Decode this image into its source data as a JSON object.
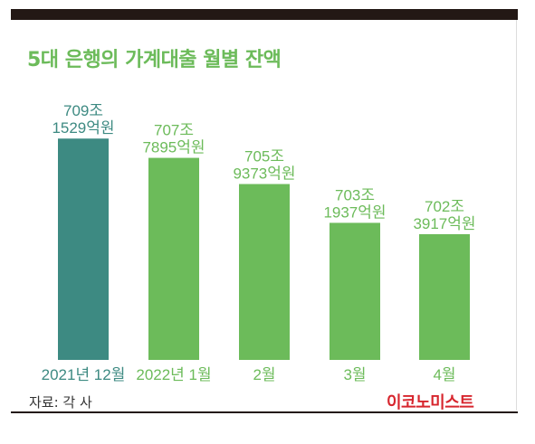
{
  "title": "5대 은행의 가계대출 월별 잔액",
  "source": "자료: 각 사",
  "brand": "이코노미스트",
  "colors": {
    "highlight": "#3d8a82",
    "bar": "#6cbb5a",
    "label_highlight": "#3d8a82",
    "label": "#6cbb5a",
    "axis_label": "#6cbb5a",
    "brand": "#d7262e"
  },
  "chart_data": {
    "type": "bar",
    "title": "5대 은행의 가계대출 월별 잔액",
    "unit": "억원",
    "categories": [
      "2021년 12월",
      "2022년 1월",
      "2월",
      "3월",
      "4월"
    ],
    "values": [
      7091529,
      7077895,
      7059373,
      7031937,
      7023917
    ],
    "labels": [
      [
        "709조",
        "1529억원"
      ],
      [
        "707조",
        "7895억원"
      ],
      [
        "705조",
        "9373억원"
      ],
      [
        "703조",
        "1937억원"
      ],
      [
        "702조",
        "3917억원"
      ]
    ],
    "highlight_index": 0,
    "ylim": [
      6935000,
      7100000
    ],
    "grid": false,
    "legend": "none"
  }
}
